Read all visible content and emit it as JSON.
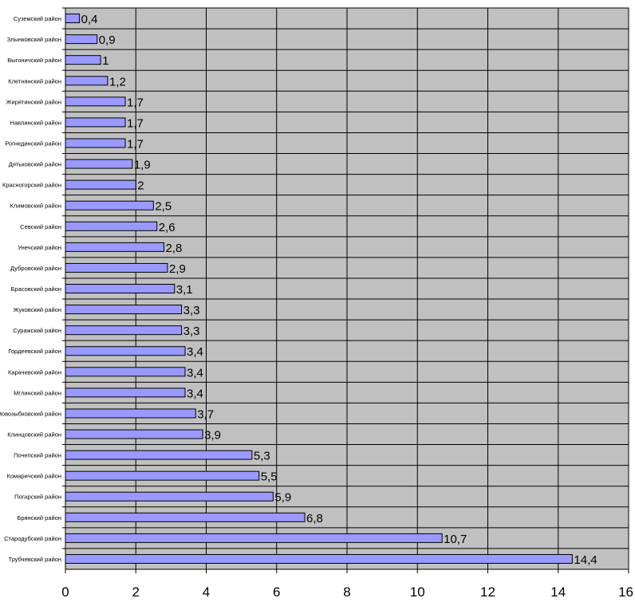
{
  "chart_data": {
    "type": "bar",
    "orientation": "horizontal",
    "categories": [
      "Суземский район",
      "Злынковский район",
      "Выгоничский район",
      "Клетнянский район",
      "Жирятинский район",
      "Навлинский район",
      "Рогнединский район",
      "Дятьковский район",
      "Красногорский район",
      "Климовский район",
      "Севский район",
      "Унечский район",
      "Дубровский район",
      "Брасовский район",
      "Жуковский район",
      "Суражский район",
      "Гордеевский район",
      "Карачевский район",
      "Мглинский район",
      "Новозыбковский район",
      "Клинцовский район",
      "Почепский район",
      "Комаричский район",
      "Погарский район",
      "Брянский район",
      "Стародубский район",
      "Трубчевский район"
    ],
    "values": [
      0.4,
      0.9,
      1,
      1.2,
      1.7,
      1.7,
      1.7,
      1.9,
      2,
      2.5,
      2.6,
      2.8,
      2.9,
      3.1,
      3.3,
      3.3,
      3.4,
      3.4,
      3.4,
      3.7,
      3.9,
      5.3,
      5.5,
      5.9,
      6.8,
      10.7,
      14.4
    ],
    "value_labels": [
      "0,4",
      "0,9",
      "1",
      "1,2",
      "1,7",
      "1,7",
      "1,7",
      "1,9",
      "2",
      "2,5",
      "2,6",
      "2,8",
      "2,9",
      "3,1",
      "3,3",
      "3,3",
      "3,4",
      "3,4",
      "3,4",
      "3,7",
      "3,9",
      "5,3",
      "5,5",
      "5,9",
      "6,8",
      "10,7",
      "14,4"
    ],
    "xlim": [
      0,
      16
    ],
    "x_ticks": [
      0,
      2,
      4,
      6,
      8,
      10,
      12,
      14,
      16
    ],
    "title": "",
    "xlabel": "",
    "ylabel": "",
    "grid": true,
    "legend": "none",
    "colors": {
      "plot_background": "#c0c0c0",
      "bar_fill": "#9999ff",
      "bar_stroke": "#000000",
      "gridline": "#000000"
    }
  }
}
